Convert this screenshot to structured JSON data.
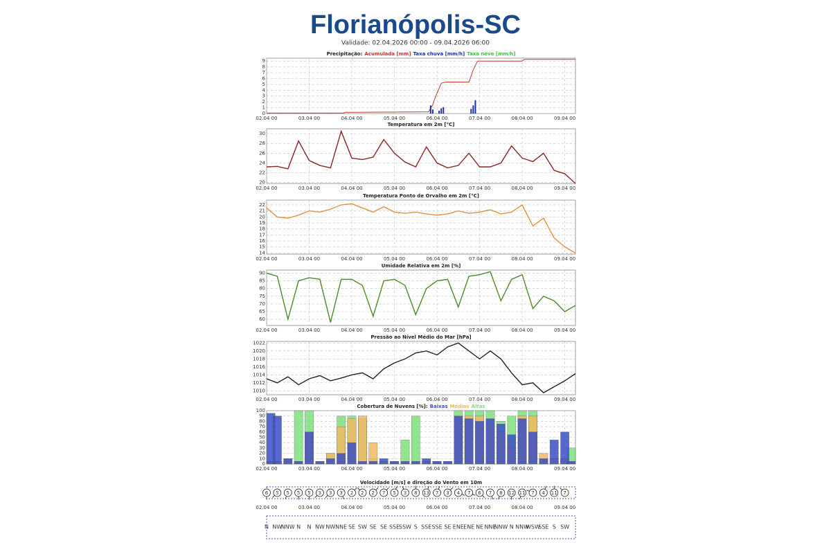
{
  "header": {
    "title": "Florianópolis-SC",
    "subtitle": "Validade: 02.04.2026 00:00 - 09.04.2026 06:00"
  },
  "chart_data": [
    {
      "type": "precip",
      "title": "Precipitação:",
      "xlim": [
        0,
        7.25
      ],
      "ylim": [
        0,
        9.5
      ],
      "yticks": [
        0,
        1,
        2,
        3,
        4,
        5,
        6,
        7,
        8,
        9
      ],
      "xticks": [
        {
          "value": 0,
          "label": "02.04 00"
        },
        {
          "value": 1,
          "label": "03.04 00"
        },
        {
          "value": 2,
          "label": "04.04 00"
        },
        {
          "value": 3,
          "label": "05.04 00"
        },
        {
          "value": 4,
          "label": "06.04 00"
        },
        {
          "value": 5,
          "label": "07.04 00"
        },
        {
          "value": 6,
          "label": "08.04 00"
        },
        {
          "value": 7,
          "label": "09.04 00"
        }
      ],
      "grid": true,
      "series": [
        {
          "name": "Acumulada [mm]",
          "color": "#c0392b",
          "mark": "line",
          "x": [
            0,
            1.8,
            1.85,
            3.8,
            3.9,
            3.95,
            4.1,
            4.2,
            4.75,
            4.85,
            4.95,
            6.0,
            6.05,
            7.25
          ],
          "values": [
            0.1,
            0.1,
            0.2,
            0.3,
            1.5,
            2.6,
            5.2,
            5.4,
            5.4,
            7.5,
            9.0,
            9.0,
            9.3,
            9.3
          ]
        },
        {
          "name": "Taxa chuva [mm/h]",
          "color": "#1f2fa8",
          "mark": "bar",
          "x": [
            3.85,
            3.9,
            4.05,
            4.1,
            4.15,
            4.8,
            4.85,
            4.9
          ],
          "values": [
            1.4,
            0.7,
            0.5,
            0.9,
            1.1,
            0.8,
            1.4,
            2.3
          ]
        },
        {
          "name": "Taxa neve [mm/h]",
          "color": "#3ec43e",
          "mark": "bar"
        }
      ]
    },
    {
      "type": "line",
      "title": "Temperatura em 2m [°C]",
      "xlim": [
        0,
        7.25
      ],
      "ylim": [
        19.8,
        31
      ],
      "yticks": [
        20,
        22,
        24,
        26,
        28,
        30
      ],
      "xticks": [
        {
          "value": 0,
          "label": "02.04 00"
        },
        {
          "value": 1,
          "label": "03.04 00"
        },
        {
          "value": 2,
          "label": "04.04 00"
        },
        {
          "value": 3,
          "label": "05.04 00"
        },
        {
          "value": 4,
          "label": "06.04 00"
        },
        {
          "value": 5,
          "label": "07.04 00"
        },
        {
          "value": 6,
          "label": "08.04 00"
        },
        {
          "value": 7,
          "label": "09.04 00"
        }
      ],
      "grid": true,
      "x": [
        0,
        0.25,
        0.5,
        0.75,
        1,
        1.25,
        1.5,
        1.75,
        2,
        2.25,
        2.5,
        2.75,
        3,
        3.25,
        3.5,
        3.75,
        4,
        4.25,
        4.5,
        4.75,
        5,
        5.25,
        5.5,
        5.75,
        6,
        6.25,
        6.5,
        6.75,
        7,
        7.25
      ],
      "series": [
        {
          "name": "Temperatura",
          "color": "#8b2323",
          "values": [
            23.2,
            23.3,
            22.8,
            28.5,
            24.5,
            23.5,
            23.0,
            30.5,
            25.0,
            24.7,
            25.2,
            28.8,
            26.0,
            24.2,
            23.2,
            27.3,
            24.0,
            23.0,
            23.5,
            26.0,
            23.2,
            23.2,
            24.0,
            27.5,
            25.0,
            24.3,
            26.0,
            22.5,
            21.8,
            19.8
          ]
        }
      ]
    },
    {
      "type": "line",
      "title": "Temperatura Ponto de Orvalho em 2m [°C]",
      "xlim": [
        0,
        7.25
      ],
      "ylim": [
        13.8,
        22.8
      ],
      "yticks": [
        14,
        15,
        16,
        17,
        18,
        19,
        20,
        21,
        22
      ],
      "xticks": [
        {
          "value": 0,
          "label": "02.04 00"
        },
        {
          "value": 1,
          "label": "03.04 00"
        },
        {
          "value": 2,
          "label": "04.04 00"
        },
        {
          "value": 3,
          "label": "05.04 00"
        },
        {
          "value": 4,
          "label": "06.04 00"
        },
        {
          "value": 5,
          "label": "07.04 00"
        },
        {
          "value": 6,
          "label": "08.04 00"
        },
        {
          "value": 7,
          "label": "09.04 00"
        }
      ],
      "grid": true,
      "x": [
        0,
        0.25,
        0.5,
        0.75,
        1,
        1.25,
        1.5,
        1.75,
        2,
        2.25,
        2.5,
        2.75,
        3,
        3.25,
        3.5,
        3.75,
        4,
        4.25,
        4.5,
        4.75,
        5,
        5.25,
        5.5,
        5.75,
        6,
        6.25,
        6.5,
        6.75,
        7,
        7.25
      ],
      "series": [
        {
          "name": "Ponto de Orvalho",
          "color": "#e0913a",
          "values": [
            21.5,
            20.0,
            19.8,
            20.3,
            21.0,
            20.8,
            21.3,
            22.0,
            22.2,
            21.5,
            20.8,
            21.7,
            20.8,
            20.6,
            20.8,
            20.5,
            20.3,
            20.5,
            21.0,
            20.6,
            20.8,
            21.2,
            20.5,
            20.8,
            22.0,
            18.5,
            19.8,
            16.5,
            15.0,
            14.0
          ]
        }
      ]
    },
    {
      "type": "line",
      "title": "Umidade Relativa em 2m [%]",
      "xlim": [
        0,
        7.25
      ],
      "ylim": [
        56,
        92
      ],
      "yticks": [
        60,
        65,
        70,
        75,
        80,
        85,
        90
      ],
      "xticks": [
        {
          "value": 0,
          "label": "02.04 00"
        },
        {
          "value": 1,
          "label": "03.04 00"
        },
        {
          "value": 2,
          "label": "04.04 00"
        },
        {
          "value": 3,
          "label": "05.04 00"
        },
        {
          "value": 4,
          "label": "06.04 00"
        },
        {
          "value": 5,
          "label": "07.04 00"
        },
        {
          "value": 6,
          "label": "08.04 00"
        },
        {
          "value": 7,
          "label": "09.04 00"
        }
      ],
      "grid": true,
      "x": [
        0,
        0.25,
        0.5,
        0.75,
        1,
        1.25,
        1.5,
        1.75,
        2,
        2.25,
        2.5,
        2.75,
        3,
        3.25,
        3.5,
        3.75,
        4,
        4.25,
        4.5,
        4.75,
        5,
        5.25,
        5.5,
        5.75,
        6,
        6.25,
        6.5,
        6.75,
        7,
        7.25
      ],
      "series": [
        {
          "name": "Umidade",
          "color": "#4a8a2a",
          "values": [
            90,
            88,
            60,
            85,
            87,
            86,
            58,
            86,
            86,
            82,
            62,
            85,
            86,
            82,
            63,
            80,
            85,
            86,
            68,
            88,
            89,
            91,
            72,
            86,
            89,
            67,
            75,
            72,
            65,
            69
          ]
        }
      ]
    },
    {
      "type": "line",
      "title": "Pressão ao Nível Médio do Mar [hPa]",
      "xlim": [
        0,
        7.25
      ],
      "ylim": [
        1009,
        1022.4
      ],
      "yticks": [
        1010,
        1012,
        1014,
        1016,
        1018,
        1020,
        1022
      ],
      "xticks": [
        {
          "value": 0,
          "label": "02.04 00"
        },
        {
          "value": 1,
          "label": "03.04 00"
        },
        {
          "value": 2,
          "label": "04.04 00"
        },
        {
          "value": 3,
          "label": "05.04 00"
        },
        {
          "value": 4,
          "label": "06.04 00"
        },
        {
          "value": 5,
          "label": "07.04 00"
        },
        {
          "value": 6,
          "label": "08.04 00"
        },
        {
          "value": 7,
          "label": "09.04 00"
        }
      ],
      "grid": true,
      "x": [
        0,
        0.25,
        0.5,
        0.75,
        1,
        1.25,
        1.5,
        1.75,
        2,
        2.25,
        2.5,
        2.75,
        3,
        3.25,
        3.5,
        3.75,
        4,
        4.25,
        4.5,
        4.75,
        5,
        5.25,
        5.5,
        5.75,
        6,
        6.25,
        6.5,
        6.75,
        7,
        7.25
      ],
      "series": [
        {
          "name": "Pressão",
          "color": "#222222",
          "values": [
            1013,
            1012,
            1013.5,
            1011.5,
            1013,
            1013.8,
            1012.5,
            1013.2,
            1014,
            1014.5,
            1013,
            1015.5,
            1017,
            1018,
            1019.5,
            1020,
            1019,
            1021,
            1022,
            1020,
            1018,
            1020,
            1018,
            1014.5,
            1011.5,
            1012,
            1009.5,
            1011,
            1012.5,
            1014.3
          ]
        }
      ]
    },
    {
      "type": "cloud",
      "title": "Cobertura de Nuvens [%]:",
      "xlim": [
        0,
        7.25
      ],
      "ylim": [
        0,
        100
      ],
      "yticks": [
        0,
        10,
        20,
        30,
        40,
        50,
        60,
        70,
        80,
        90,
        100
      ],
      "xticks": [
        {
          "value": 0,
          "label": "02.04 00"
        },
        {
          "value": 1,
          "label": "03.04 00"
        },
        {
          "value": 2,
          "label": "04.04 00"
        },
        {
          "value": 3,
          "label": "05.04 00"
        },
        {
          "value": 4,
          "label": "06.04 00"
        },
        {
          "value": 5,
          "label": "07.04 00"
        },
        {
          "value": 6,
          "label": "08.04 00"
        },
        {
          "value": 7,
          "label": "09.04 00"
        }
      ],
      "grid": true,
      "x": [
        0,
        0.25,
        0.5,
        0.75,
        1,
        1.25,
        1.5,
        1.75,
        2,
        2.25,
        2.5,
        2.75,
        3,
        3.25,
        3.5,
        3.75,
        4,
        4.25,
        4.5,
        4.75,
        5,
        5.25,
        5.5,
        5.75,
        6,
        6.25,
        6.5,
        6.75,
        7,
        7.25
      ],
      "series": [
        {
          "name": "Altas",
          "color": "#7ee07e",
          "values": [
            5,
            5,
            10,
            100,
            100,
            5,
            20,
            90,
            90,
            85,
            10,
            5,
            5,
            45,
            90,
            5,
            5,
            5,
            100,
            100,
            100,
            100,
            80,
            90,
            100,
            100,
            10,
            10,
            10,
            30
          ]
        },
        {
          "name": "Médias",
          "color": "#f0b860",
          "values": [
            5,
            5,
            10,
            5,
            60,
            5,
            20,
            70,
            85,
            90,
            40,
            5,
            5,
            5,
            5,
            5,
            5,
            5,
            90,
            90,
            90,
            75,
            60,
            30,
            90,
            90,
            20,
            10,
            10,
            5
          ]
        },
        {
          "name": "Baixas",
          "color": "#3b4fc4",
          "values": [
            95,
            90,
            10,
            5,
            60,
            5,
            10,
            20,
            40,
            5,
            5,
            10,
            5,
            5,
            5,
            10,
            5,
            5,
            90,
            85,
            80,
            85,
            75,
            55,
            85,
            60,
            10,
            45,
            60,
            5
          ]
        }
      ]
    },
    {
      "type": "wind",
      "title": "Velocidade [m/s] e direção do Vento em 10m",
      "xlim": [
        0,
        7.25
      ],
      "xticks": [
        {
          "value": 0,
          "label": "02.04 00"
        },
        {
          "value": 1,
          "label": "03.04 00"
        },
        {
          "value": 2,
          "label": "04.04 00"
        },
        {
          "value": 3,
          "label": "05.04 00"
        },
        {
          "value": 4,
          "label": "06.04 00"
        },
        {
          "value": 5,
          "label": "07.04 00"
        },
        {
          "value": 6,
          "label": "08.04 00"
        },
        {
          "value": 7,
          "label": "09.04 00"
        }
      ],
      "x": [
        0,
        0.25,
        0.5,
        0.75,
        1,
        1.25,
        1.5,
        1.75,
        2,
        2.25,
        2.5,
        2.75,
        3,
        3.25,
        3.5,
        3.75,
        4,
        4.25,
        4.5,
        4.75,
        5,
        5.25,
        5.5,
        5.75,
        6,
        6.25,
        6.5,
        6.75,
        7
      ],
      "values": [
        6,
        5,
        5,
        5,
        5,
        3,
        3,
        3,
        2,
        2,
        2,
        7,
        5,
        3,
        8,
        13,
        7,
        3,
        4,
        7,
        6,
        7,
        8,
        12,
        11,
        7,
        4,
        11,
        7
      ],
      "directions": [
        "N",
        "NW",
        "NNW",
        "N",
        "N",
        "NW",
        "NW",
        "NNE",
        "SE",
        "SW",
        "SE",
        "SE",
        "SSE",
        "SSW",
        "S",
        "SSE",
        "SSE",
        "SE",
        "ENE",
        "ENE",
        "NE",
        "NNE",
        "NNW",
        "N",
        "NNW",
        "WSW",
        "SSE",
        "S",
        "SW"
      ]
    }
  ]
}
